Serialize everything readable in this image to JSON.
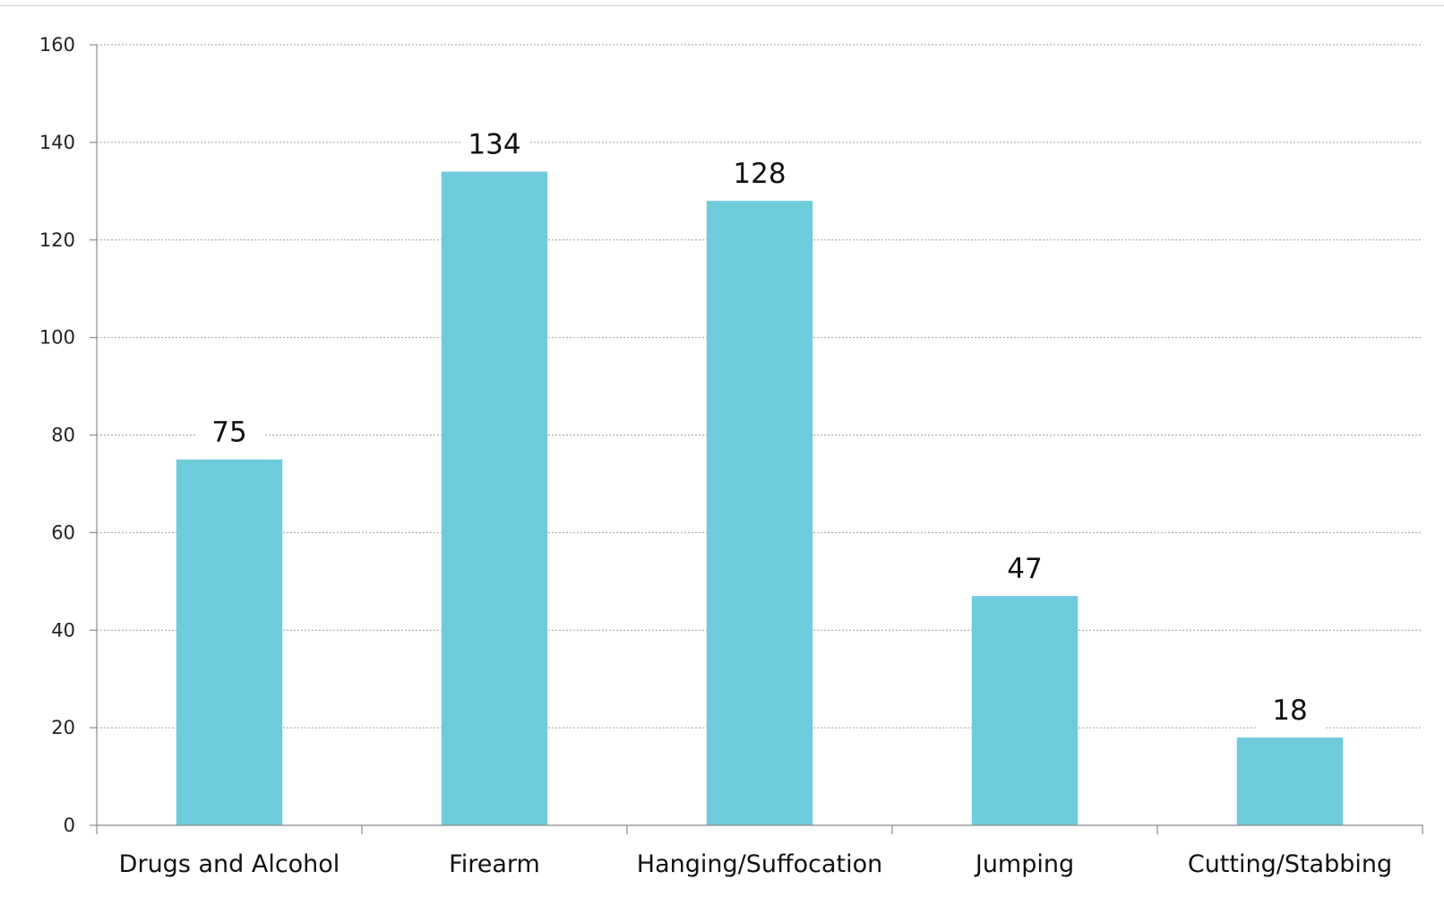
{
  "chart_data": {
    "type": "bar",
    "title": "",
    "xlabel": "",
    "ylabel": "",
    "categories": [
      "Drugs and Alcohol",
      "Firearm",
      "Hanging/Suffocation",
      "Jumping",
      "Cutting/Stabbing"
    ],
    "values": [
      75,
      134,
      128,
      47,
      18
    ],
    "data_labels": [
      "75",
      "134",
      "128",
      "47",
      "18"
    ],
    "ylim": [
      0,
      160
    ],
    "yticks": [
      0,
      20,
      40,
      60,
      80,
      100,
      120,
      140,
      160
    ],
    "ytick_labels": [
      "0",
      "20",
      "40",
      "60",
      "80",
      "100",
      "120",
      "140",
      "160"
    ],
    "grid": true,
    "grid_style": "dotted",
    "legend": "none",
    "bar_color": "#6ECBDC",
    "gridline_color": "#a0a0a0",
    "axis_color": "#8c8c8c"
  }
}
